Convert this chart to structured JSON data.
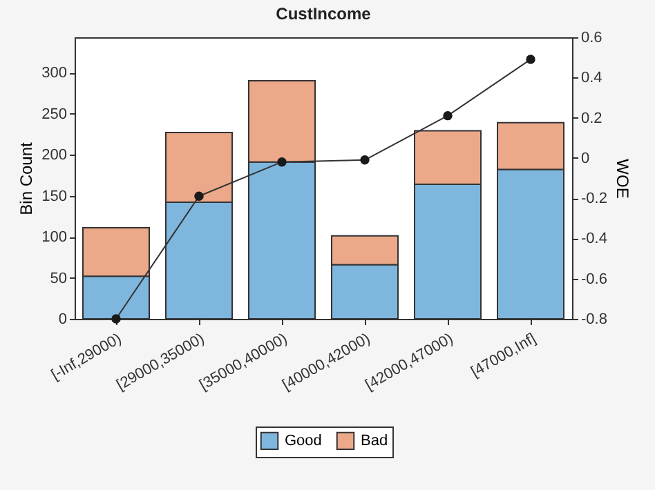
{
  "chart_data": {
    "type": "bar",
    "title": "CustIncome",
    "ylabel": "Bin Count",
    "y2label": "WOE",
    "categories": [
      "[-Inf,29000)",
      "[29000,35000)",
      "[35000,40000)",
      "[40000,42000)",
      "[42000,47000)",
      "[47000,Inf]"
    ],
    "stacked": true,
    "series": [
      {
        "name": "Good",
        "color": "#7eb6de",
        "values": [
          52,
          142,
          191,
          66,
          164,
          182
        ]
      },
      {
        "name": "Bad",
        "color": "#eba98a",
        "values": [
          59,
          85,
          99,
          35,
          65,
          57
        ]
      },
      {
        "type": "line",
        "axis": "y2",
        "color": "#333333",
        "marker": "circle",
        "values": [
          -0.8,
          -0.19,
          -0.02,
          -0.01,
          0.21,
          0.49
        ]
      }
    ],
    "ylim": [
      0,
      343
    ],
    "yticks": [
      0,
      50,
      100,
      150,
      200,
      250,
      300
    ],
    "y2lim": [
      -0.8,
      0.6
    ],
    "y2ticks": [
      -0.8,
      -0.6,
      -0.4,
      -0.2,
      0,
      0.2,
      0.4,
      0.6
    ],
    "legend": "bottom"
  }
}
